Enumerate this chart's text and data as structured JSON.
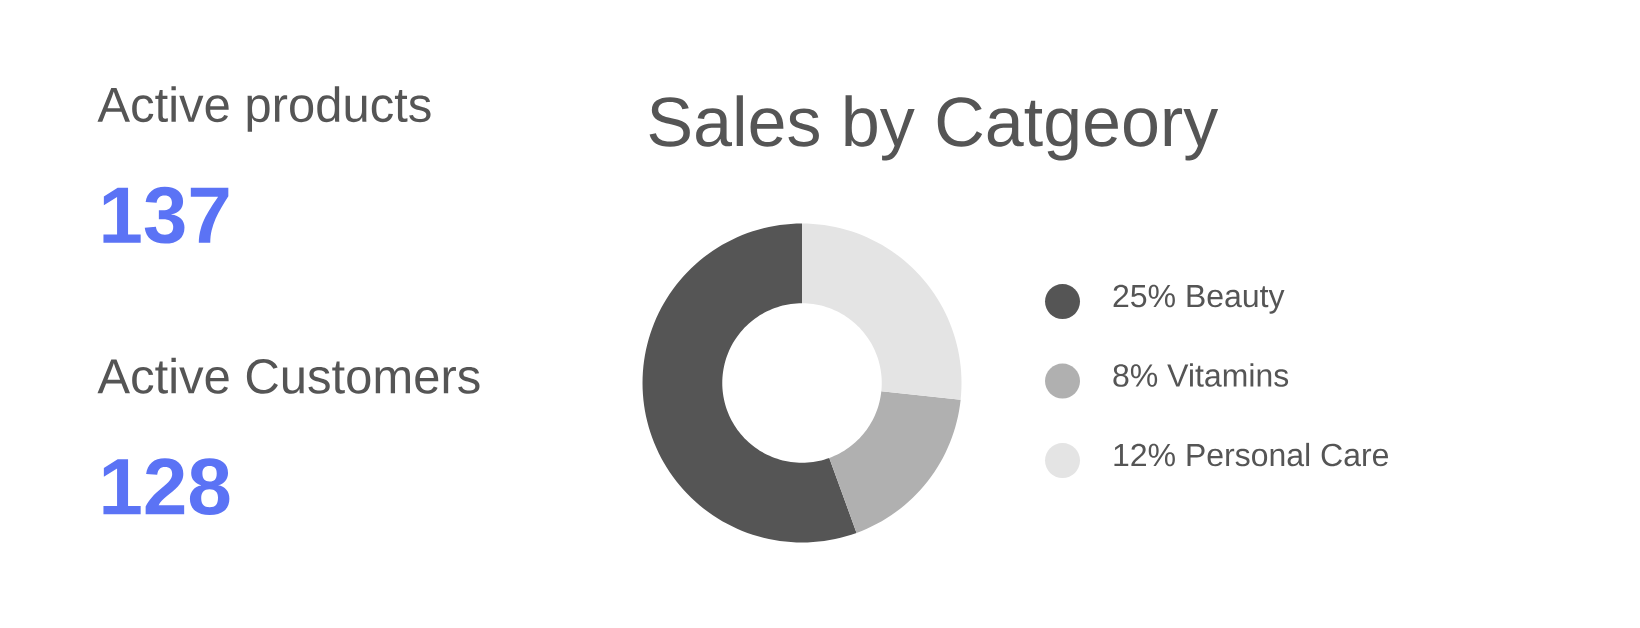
{
  "chart_data": [
    {
      "type": "other",
      "categories": [
        "Active products",
        "Active Customers"
      ],
      "values": [
        137,
        128
      ],
      "data_labels": true,
      "color": "#5b73f5"
    },
    {
      "type": "donut",
      "title": "Sales by Catgeory",
      "categories": [
        "25% Beauty",
        "8% Vitamins",
        "12% Personal Care"
      ],
      "values": [
        25,
        8,
        12
      ],
      "colors": [
        "#555555",
        "#b0b0b0",
        "#e4e4e4"
      ],
      "legend": "right"
    }
  ]
}
